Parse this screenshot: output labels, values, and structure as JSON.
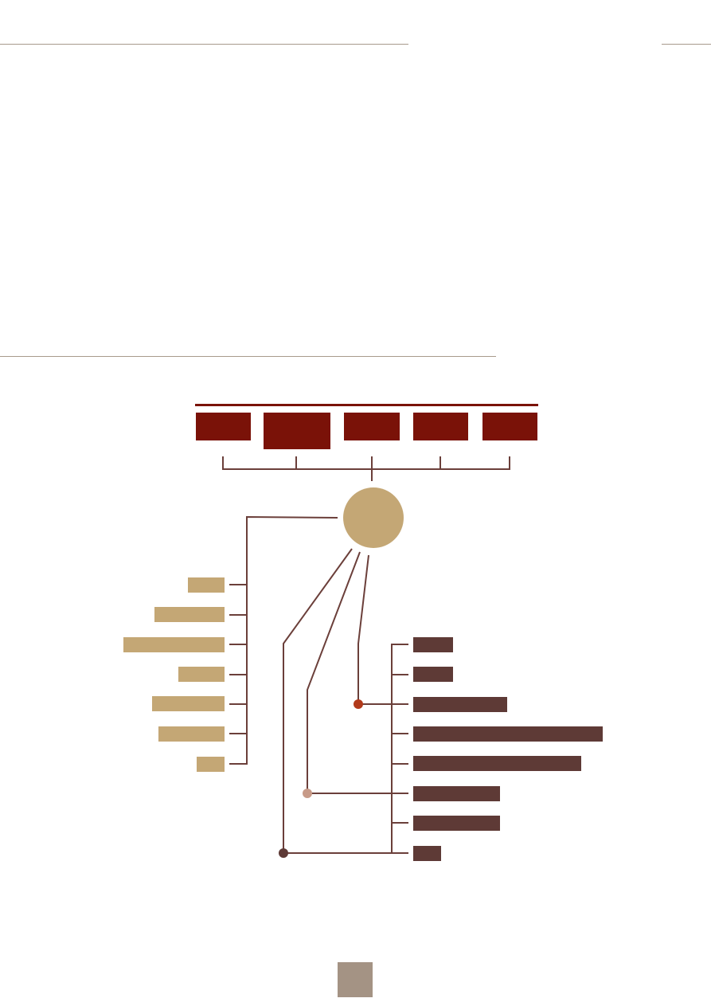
{
  "colors": {
    "rule": "#a89a8c",
    "dark_red": "#7a1208",
    "connector": "#6b3f3a",
    "tan": "#c4a775",
    "dark_brown": "#5e3a36",
    "accent_orange": "#b23a1a",
    "accent_pink": "#c79a88",
    "page_box": "#a49384"
  },
  "diagram": {
    "top_boxes": 5,
    "left_bars": 7,
    "right_bars": 8
  },
  "page_number": ""
}
